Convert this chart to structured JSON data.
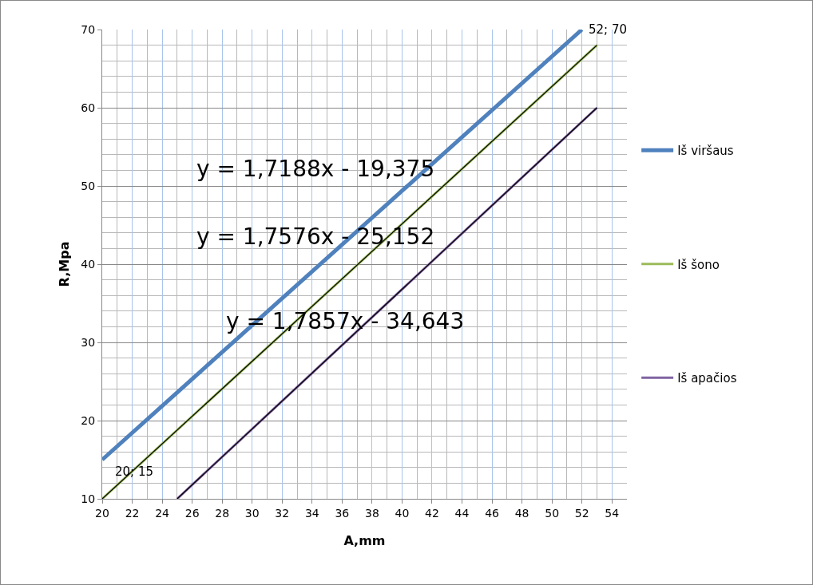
{
  "chart_data": {
    "type": "line",
    "xlabel": "A,mm",
    "ylabel": "R,Mpa",
    "xlim": [
      20,
      55
    ],
    "xticks": [
      20,
      22,
      24,
      26,
      28,
      30,
      32,
      34,
      36,
      38,
      40,
      42,
      44,
      46,
      48,
      50,
      52,
      54
    ],
    "ylim": [
      10,
      70
    ],
    "yticks": [
      10,
      20,
      30,
      40,
      50,
      60,
      70
    ],
    "grid": true,
    "legend": "right",
    "marker": "none",
    "line_style": "solid",
    "series": [
      {
        "name": "Iš viršaus",
        "color": "#4f81bd",
        "x": [
          20,
          52
        ],
        "values": [
          15,
          70
        ]
      },
      {
        "name": "Iš šono",
        "color": "#9bbb59",
        "x": [
          20,
          53
        ],
        "values": [
          10,
          68
        ]
      },
      {
        "name": "Iš apačios",
        "color": "#8064a2",
        "x": [
          25,
          53
        ],
        "values": [
          10,
          60
        ]
      },
      {
        "type": "line",
        "color": "#000000",
        "x": [
          20,
          53
        ],
        "values": [
          10,
          68
        ]
      },
      {
        "type": "line",
        "color": "#000000",
        "x": [
          25,
          53
        ],
        "values": [
          10,
          60
        ]
      }
    ],
    "annotations": [
      "y = 1,7188x - 19,375",
      "y = 1,7576x - 25,152",
      "y = 1,7857x - 34,643",
      {
        "text": "20; 15",
        "x": 20,
        "y": 15
      },
      {
        "text": "52; 70",
        "x": 52,
        "y": 70
      }
    ]
  }
}
